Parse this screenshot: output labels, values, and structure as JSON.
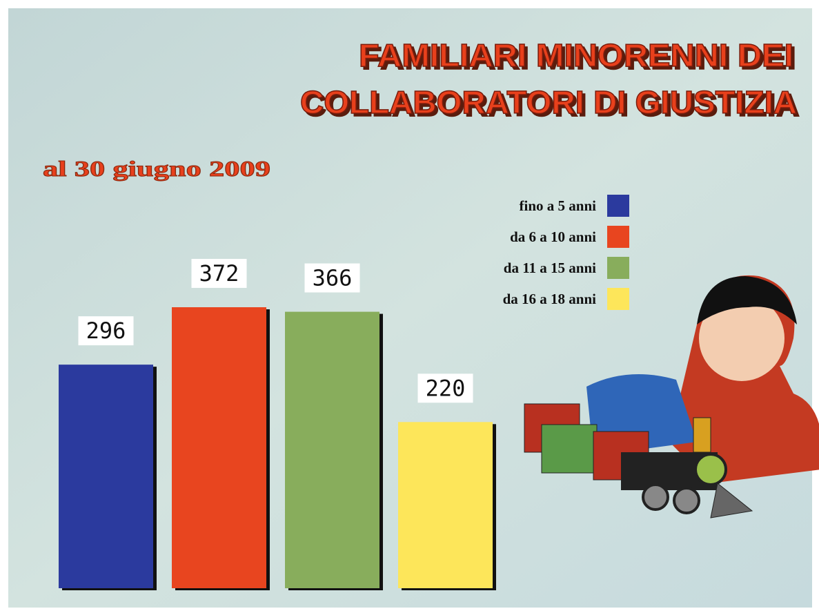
{
  "chart_data": {
    "type": "bar",
    "title": [
      "FAMILIARI  MINORENNI DEI",
      "COLLABORATORI DI GIUSTIZIA"
    ],
    "subtitle": "al 30 giugno 2009",
    "categories": [
      "fino a 5 anni",
      "da 6 a 10 anni",
      "da 11 a 15 anni",
      "da 16 a 18 anni"
    ],
    "values": [
      296,
      372,
      366,
      220
    ],
    "colors": [
      "#2b3a9e",
      "#e8451f",
      "#88ad5c",
      "#fde65a"
    ],
    "legend": "upper right"
  }
}
